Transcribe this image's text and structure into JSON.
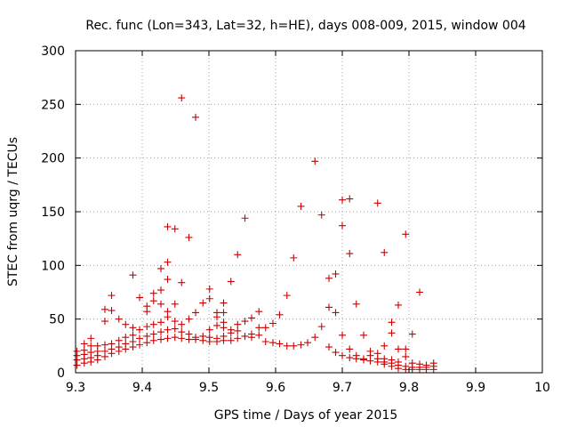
{
  "chart_data": {
    "type": "scatter",
    "title": "Rec. func (Lon=343, Lat=32, h=HE), days 008-009, 2015, window 004",
    "xlabel": "GPS time / Days of year 2015",
    "ylabel": "STEC from uqrg / TECUs",
    "xlim": [
      9.3,
      10.0
    ],
    "ylim": [
      0,
      300
    ],
    "xticks": [
      "9.3",
      "9.4",
      "9.5",
      "9.6",
      "9.7",
      "9.8",
      "9.9",
      "10"
    ],
    "yticks": [
      "0",
      "50",
      "100",
      "150",
      "200",
      "250",
      "300"
    ],
    "grid": true,
    "marker": "plus",
    "color": "#cc0000",
    "points": [
      [
        9.302,
        7
      ],
      [
        9.302,
        12
      ],
      [
        9.302,
        16
      ],
      [
        9.302,
        20
      ],
      [
        9.313,
        9
      ],
      [
        9.313,
        13
      ],
      [
        9.313,
        17
      ],
      [
        9.313,
        21
      ],
      [
        9.313,
        27
      ],
      [
        9.323,
        10
      ],
      [
        9.323,
        14
      ],
      [
        9.323,
        19
      ],
      [
        9.323,
        25
      ],
      [
        9.323,
        32
      ],
      [
        9.333,
        12
      ],
      [
        9.333,
        16
      ],
      [
        9.333,
        20
      ],
      [
        9.333,
        25
      ],
      [
        9.344,
        15
      ],
      [
        9.344,
        20
      ],
      [
        9.344,
        26
      ],
      [
        9.344,
        48
      ],
      [
        9.344,
        59
      ],
      [
        9.354,
        18
      ],
      [
        9.354,
        22
      ],
      [
        9.354,
        27
      ],
      [
        9.354,
        58
      ],
      [
        9.354,
        72
      ],
      [
        9.365,
        20
      ],
      [
        9.365,
        24
      ],
      [
        9.365,
        30
      ],
      [
        9.365,
        50
      ],
      [
        9.375,
        22
      ],
      [
        9.375,
        27
      ],
      [
        9.375,
        33
      ],
      [
        9.375,
        45
      ],
      [
        9.386,
        24
      ],
      [
        9.386,
        29
      ],
      [
        9.386,
        35
      ],
      [
        9.386,
        42
      ],
      [
        9.386,
        91
      ],
      [
        9.396,
        26
      ],
      [
        9.396,
        32
      ],
      [
        9.396,
        40
      ],
      [
        9.396,
        70
      ],
      [
        9.407,
        28
      ],
      [
        9.407,
        34
      ],
      [
        9.407,
        43
      ],
      [
        9.407,
        57
      ],
      [
        9.407,
        62
      ],
      [
        9.417,
        30
      ],
      [
        9.417,
        36
      ],
      [
        9.417,
        45
      ],
      [
        9.417,
        67
      ],
      [
        9.417,
        74
      ],
      [
        9.428,
        31
      ],
      [
        9.428,
        38
      ],
      [
        9.428,
        47
      ],
      [
        9.428,
        64
      ],
      [
        9.428,
        77
      ],
      [
        9.428,
        97
      ],
      [
        9.438,
        32
      ],
      [
        9.438,
        40
      ],
      [
        9.438,
        52
      ],
      [
        9.438,
        57
      ],
      [
        9.438,
        87
      ],
      [
        9.438,
        103
      ],
      [
        9.438,
        136
      ],
      [
        9.449,
        33
      ],
      [
        9.449,
        41
      ],
      [
        9.449,
        48
      ],
      [
        9.449,
        64
      ],
      [
        9.449,
        134
      ],
      [
        9.459,
        32
      ],
      [
        9.459,
        38
      ],
      [
        9.459,
        45
      ],
      [
        9.459,
        84
      ],
      [
        9.459,
        256
      ],
      [
        9.47,
        31
      ],
      [
        9.47,
        36
      ],
      [
        9.47,
        50
      ],
      [
        9.47,
        126
      ],
      [
        9.48,
        31
      ],
      [
        9.48,
        33
      ],
      [
        9.48,
        56
      ],
      [
        9.48,
        238
      ],
      [
        9.491,
        30
      ],
      [
        9.491,
        34
      ],
      [
        9.491,
        65
      ],
      [
        9.501,
        29
      ],
      [
        9.501,
        33
      ],
      [
        9.501,
        40
      ],
      [
        9.501,
        69
      ],
      [
        9.501,
        78
      ],
      [
        9.512,
        29
      ],
      [
        9.512,
        32
      ],
      [
        9.512,
        44
      ],
      [
        9.512,
        52
      ],
      [
        9.512,
        56
      ],
      [
        9.522,
        30
      ],
      [
        9.522,
        34
      ],
      [
        9.522,
        42
      ],
      [
        9.522,
        47
      ],
      [
        9.522,
        56
      ],
      [
        9.522,
        65
      ],
      [
        9.533,
        30
      ],
      [
        9.533,
        37
      ],
      [
        9.533,
        40
      ],
      [
        9.533,
        85
      ],
      [
        9.543,
        32
      ],
      [
        9.543,
        39
      ],
      [
        9.543,
        45
      ],
      [
        9.543,
        110
      ],
      [
        9.554,
        34
      ],
      [
        9.554,
        48
      ],
      [
        9.554,
        144
      ],
      [
        9.564,
        33
      ],
      [
        9.564,
        36
      ],
      [
        9.564,
        51
      ],
      [
        9.575,
        35
      ],
      [
        9.575,
        42
      ],
      [
        9.575,
        57
      ],
      [
        9.585,
        29
      ],
      [
        9.585,
        42
      ],
      [
        9.596,
        28
      ],
      [
        9.596,
        46
      ],
      [
        9.606,
        27
      ],
      [
        9.606,
        54
      ],
      [
        9.617,
        25
      ],
      [
        9.617,
        72
      ],
      [
        9.627,
        25
      ],
      [
        9.627,
        107
      ],
      [
        9.638,
        26
      ],
      [
        9.638,
        155
      ],
      [
        9.648,
        28
      ],
      [
        9.659,
        33
      ],
      [
        9.659,
        197
      ],
      [
        9.669,
        43
      ],
      [
        9.669,
        147
      ],
      [
        9.68,
        24
      ],
      [
        9.68,
        61
      ],
      [
        9.68,
        88
      ],
      [
        9.69,
        19
      ],
      [
        9.69,
        56
      ],
      [
        9.69,
        92
      ],
      [
        9.7,
        16
      ],
      [
        9.7,
        35
      ],
      [
        9.7,
        137
      ],
      [
        9.7,
        161
      ],
      [
        9.711,
        14
      ],
      [
        9.711,
        22
      ],
      [
        9.711,
        111
      ],
      [
        9.711,
        162
      ],
      [
        9.721,
        13
      ],
      [
        9.721,
        16
      ],
      [
        9.721,
        64
      ],
      [
        9.732,
        12
      ],
      [
        9.732,
        13
      ],
      [
        9.732,
        35
      ],
      [
        9.742,
        11
      ],
      [
        9.742,
        16
      ],
      [
        9.742,
        20
      ],
      [
        9.753,
        10
      ],
      [
        9.753,
        13
      ],
      [
        9.753,
        18
      ],
      [
        9.753,
        158
      ],
      [
        9.763,
        8
      ],
      [
        9.763,
        10
      ],
      [
        9.763,
        13
      ],
      [
        9.763,
        25
      ],
      [
        9.763,
        112
      ],
      [
        9.774,
        6
      ],
      [
        9.774,
        9
      ],
      [
        9.774,
        12
      ],
      [
        9.774,
        37
      ],
      [
        9.774,
        47
      ],
      [
        9.784,
        4
      ],
      [
        9.784,
        7
      ],
      [
        9.784,
        10
      ],
      [
        9.784,
        22
      ],
      [
        9.784,
        63
      ],
      [
        9.795,
        3
      ],
      [
        9.795,
        6
      ],
      [
        9.795,
        15
      ],
      [
        9.795,
        22
      ],
      [
        9.795,
        129
      ],
      [
        9.805,
        3
      ],
      [
        9.805,
        5
      ],
      [
        9.805,
        9
      ],
      [
        9.805,
        36
      ],
      [
        9.816,
        3
      ],
      [
        9.816,
        5
      ],
      [
        9.816,
        8
      ],
      [
        9.816,
        75
      ],
      [
        9.826,
        3
      ],
      [
        9.826,
        5
      ],
      [
        9.826,
        7
      ],
      [
        9.837,
        3
      ],
      [
        9.837,
        6
      ],
      [
        9.837,
        9
      ]
    ]
  }
}
